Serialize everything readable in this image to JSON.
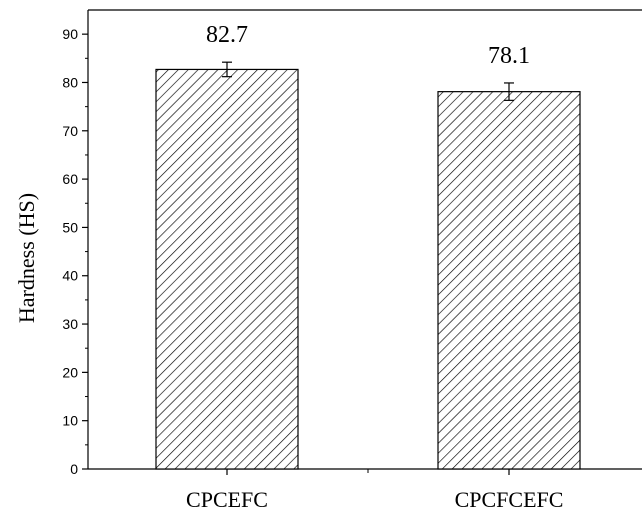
{
  "chart_data": {
    "type": "bar",
    "title": "",
    "xlabel": "",
    "ylabel": "Hardness (HS)",
    "ylim": [
      0,
      95
    ],
    "yticks": [
      0,
      10,
      20,
      30,
      40,
      50,
      60,
      70,
      80,
      90
    ],
    "categories": [
      "CPCEFC",
      "CPCFCEFC"
    ],
    "values": [
      82.7,
      78.1
    ],
    "error": [
      1.5,
      1.8
    ],
    "data_labels": [
      "82.7",
      "78.1"
    ],
    "fill": "diagonal-hatch",
    "colors": {
      "bar_stroke": "#000000",
      "hatch": "#000000",
      "background": "#ffffff"
    },
    "grid": false,
    "legend": "none"
  }
}
